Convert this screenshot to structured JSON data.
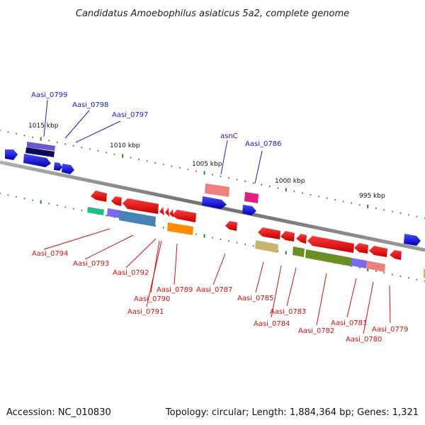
{
  "title": "Candidatus Amoebophilus asiaticus 5a2, complete genome",
  "footer": {
    "accession": "Accession: NC_010830",
    "summary": "Topology: circular; Length: 1,884,364 bp; Genes: 1,321"
  },
  "scale_labels": [
    "1015 kbp",
    "1010 kbp",
    "1005 kbp",
    "1000 kbp",
    "995 kbp"
  ],
  "top_labels": [
    "Aasi_0799",
    "Aasi_0798",
    "Aasi_0797",
    "asnC",
    "Aasi_0786"
  ],
  "bottom_labels": [
    "Aasi_0794",
    "Aasi_0793",
    "Aasi_0792",
    "Aasi_0790",
    "Aasi_0791",
    "Aasi_0789",
    "Aasi_0787",
    "Aasi_0785",
    "Aasi_0784",
    "Aasi_0783",
    "Aasi_0782",
    "Aasi_0781",
    "Aasi_0780",
    "Aasi_0779"
  ],
  "colors": {
    "backbone": "#8a8a8a",
    "tick": "#1f8a1f",
    "forward_label": "#1a1acc",
    "reverse_label": "#d01010",
    "cds_forward": "#1010ee",
    "cds_reverse": "#ee1010"
  }
}
